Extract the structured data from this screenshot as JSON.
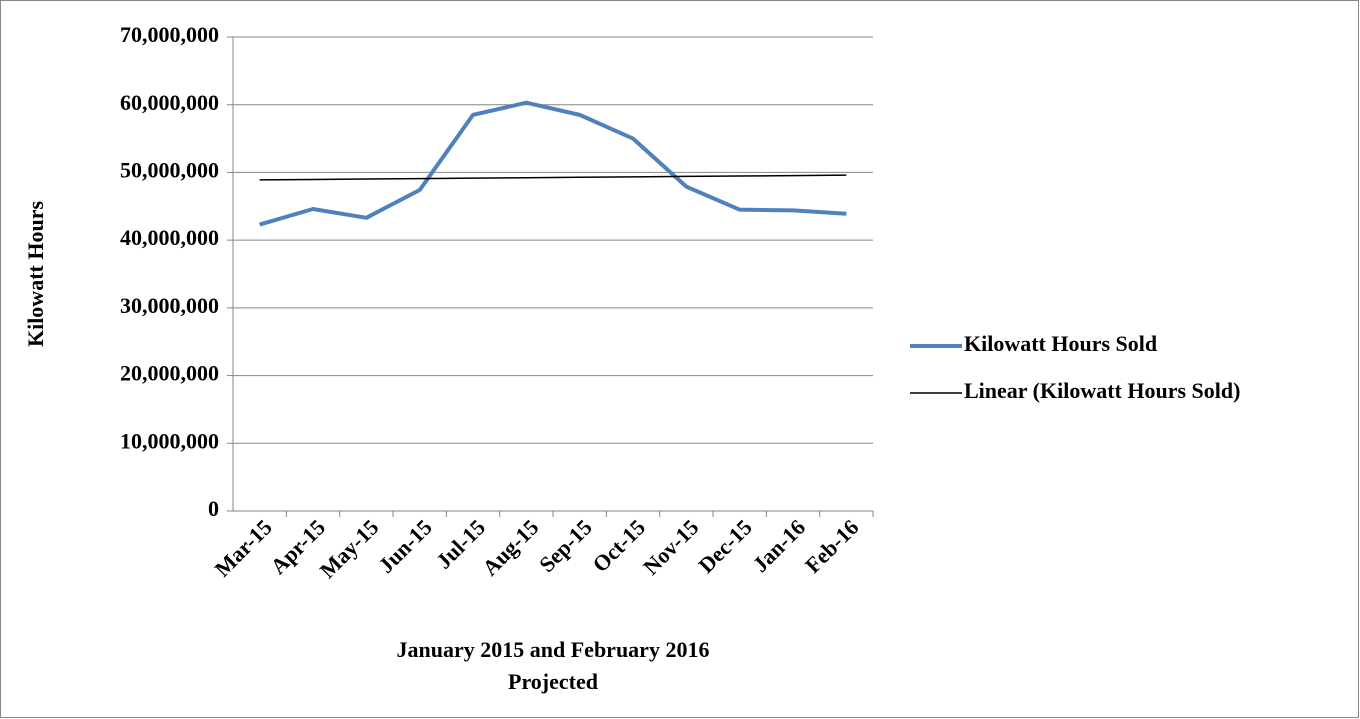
{
  "chart_data": {
    "type": "line",
    "y_label": "Kilowatt Hours",
    "x_label": [
      "January 2015 and February 2016",
      "Projected"
    ],
    "categories": [
      "Mar-15",
      "Apr-15",
      "May-15",
      "Jun-15",
      "Jul-15",
      "Aug-15",
      "Sep-15",
      "Oct-15",
      "Nov-15",
      "Dec-15",
      "Jan-16",
      "Feb-16"
    ],
    "series": [
      {
        "name": "Kilowatt Hours Sold",
        "color": "#4f81bd",
        "values": [
          42300000,
          44600000,
          43300000,
          47400000,
          58500000,
          60300000,
          58500000,
          55000000,
          47900000,
          44500000,
          44400000,
          43900000
        ]
      },
      {
        "name": "Linear (Kilowatt Hours Sold)",
        "color": "#000000",
        "values": [
          48900000,
          48960000,
          49030000,
          49090000,
          49150000,
          49220000,
          49280000,
          49340000,
          49410000,
          49470000,
          49530000,
          49600000
        ]
      }
    ],
    "ylim": [
      0,
      70000000
    ],
    "yticks": [
      0,
      {
        "value": 10000000,
        "label": "10,000,000"
      },
      {
        "value": 20000000,
        "label": "20,000,000"
      },
      {
        "value": 30000000,
        "label": "30,000,000"
      },
      {
        "value": 40000000,
        "label": "40,000,000"
      },
      {
        "value": 50000000,
        "label": "50,000,000"
      },
      {
        "value": 60000000,
        "label": "60,000,000"
      },
      {
        "value": 70000000,
        "label": "70,000,000"
      }
    ],
    "grid": true
  }
}
